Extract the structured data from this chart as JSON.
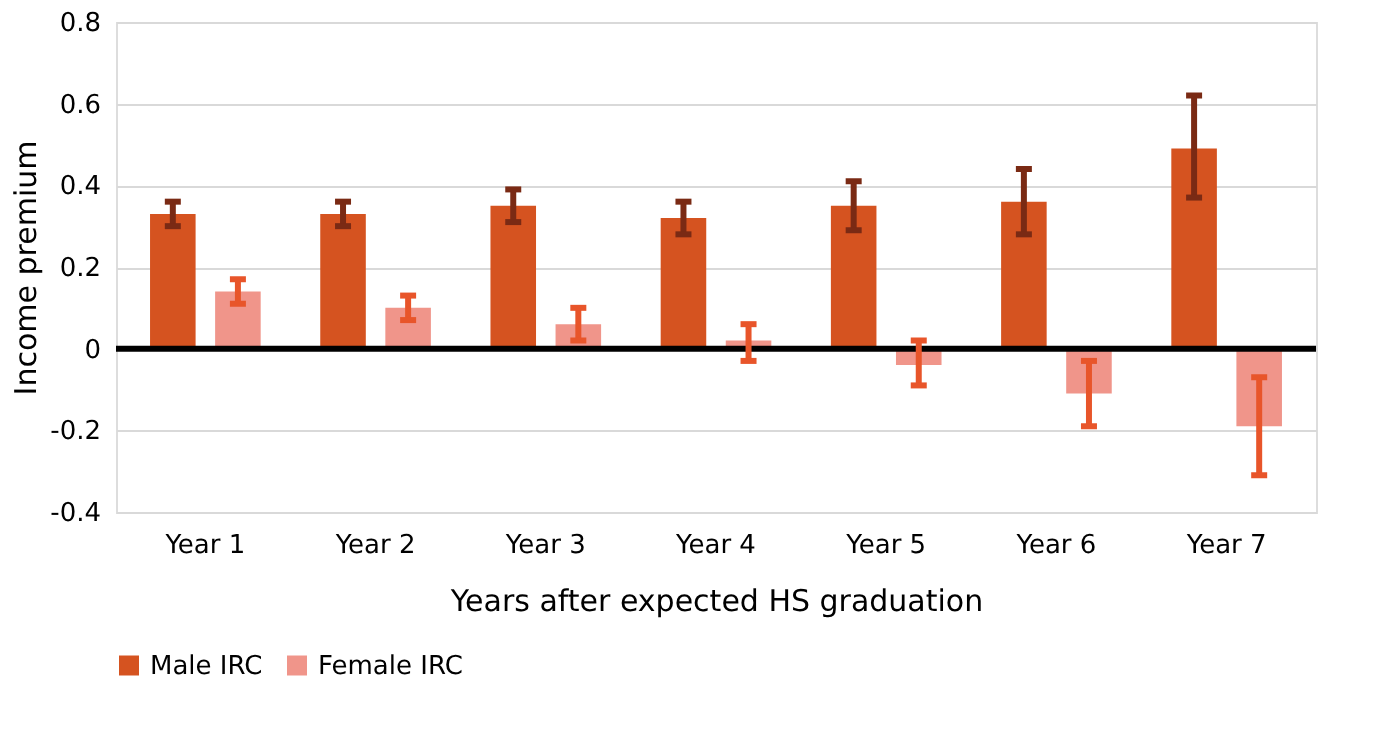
{
  "chart_data": {
    "type": "bar",
    "xlabel": "Years after expected HS graduation",
    "ylabel": "Income premium",
    "categories": [
      "Year 1",
      "Year 2",
      "Year 3",
      "Year 4",
      "Year 5",
      "Year 6",
      "Year 7"
    ],
    "series": [
      {
        "name": "Male IRC",
        "color": "#d55320",
        "values": [
          0.33,
          0.33,
          0.35,
          0.32,
          0.35,
          0.36,
          0.49
        ],
        "errors": [
          [
            0.3,
            0.36
          ],
          [
            0.3,
            0.36
          ],
          [
            0.31,
            0.39
          ],
          [
            0.28,
            0.36
          ],
          [
            0.29,
            0.41
          ],
          [
            0.28,
            0.44
          ],
          [
            0.37,
            0.62
          ]
        ]
      },
      {
        "name": "Female IRC",
        "color": "#f0958a",
        "values": [
          0.14,
          0.1,
          0.06,
          0.02,
          -0.04,
          -0.11,
          -0.19
        ],
        "errors": [
          [
            0.11,
            0.17
          ],
          [
            0.07,
            0.13
          ],
          [
            0.02,
            0.1
          ],
          [
            -0.03,
            0.06
          ],
          [
            -0.09,
            0.02
          ],
          [
            -0.19,
            -0.03
          ],
          [
            -0.31,
            -0.07
          ]
        ]
      }
    ],
    "ylim": [
      -0.4,
      0.8
    ],
    "yticks": [
      {
        "value": -0.4,
        "label": "-0.4"
      },
      {
        "value": -0.2,
        "label": "-0.2"
      },
      0,
      {
        "value": 0.2,
        "label": "0.2"
      },
      {
        "value": 0.4,
        "label": "0.4"
      },
      {
        "value": 0.6,
        "label": "0.6"
      },
      {
        "value": 0.8,
        "label": "0.8"
      }
    ],
    "ref_lines": [
      {
        "axis": "y",
        "value": 0,
        "color": "#000000"
      }
    ],
    "grid": "y",
    "legend": "bottom"
  }
}
